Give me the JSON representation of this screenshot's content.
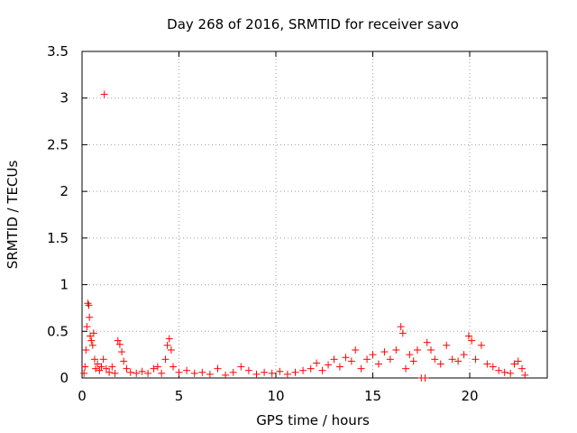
{
  "chart_data": {
    "type": "scatter",
    "title": "Day 268 of 2016, SRMTID for receiver savo",
    "xlabel": "GPS time / hours",
    "ylabel": "SRMTID / TECUs",
    "xlim": [
      0,
      24
    ],
    "ylim": [
      0,
      3.5
    ],
    "x_ticks": [
      0,
      5,
      10,
      15,
      20
    ],
    "x_tick_labels": [
      "0",
      "5",
      "10",
      "15",
      "20"
    ],
    "y_ticks": [
      0,
      0.5,
      1,
      1.5,
      2,
      2.5,
      3,
      3.5
    ],
    "y_tick_labels": [
      "0",
      "0.5",
      "1",
      "1.5",
      "2",
      "2.5",
      "3",
      "3.5"
    ],
    "grid": true,
    "marker": "plus",
    "series": [
      {
        "name": "savo",
        "color": "#ff0000",
        "points": [
          [
            0.1,
            0.05
          ],
          [
            0.15,
            0.12
          ],
          [
            0.2,
            0.3
          ],
          [
            0.25,
            0.55
          ],
          [
            0.3,
            0.8
          ],
          [
            0.35,
            0.78
          ],
          [
            0.38,
            0.65
          ],
          [
            0.42,
            0.45
          ],
          [
            0.48,
            0.4
          ],
          [
            0.55,
            0.35
          ],
          [
            0.6,
            0.48
          ],
          [
            0.65,
            0.2
          ],
          [
            0.7,
            0.1
          ],
          [
            0.8,
            0.15
          ],
          [
            0.9,
            0.08
          ],
          [
            1.0,
            0.12
          ],
          [
            1.1,
            0.2
          ],
          [
            1.15,
            3.04
          ],
          [
            1.25,
            0.1
          ],
          [
            1.4,
            0.06
          ],
          [
            1.55,
            0.12
          ],
          [
            1.7,
            0.05
          ],
          [
            1.85,
            0.4
          ],
          [
            1.95,
            0.36
          ],
          [
            2.05,
            0.28
          ],
          [
            2.15,
            0.18
          ],
          [
            2.3,
            0.1
          ],
          [
            2.5,
            0.06
          ],
          [
            2.8,
            0.05
          ],
          [
            3.1,
            0.07
          ],
          [
            3.4,
            0.05
          ],
          [
            3.7,
            0.1
          ],
          [
            3.9,
            0.12
          ],
          [
            4.1,
            0.05
          ],
          [
            4.3,
            0.2
          ],
          [
            4.4,
            0.35
          ],
          [
            4.5,
            0.42
          ],
          [
            4.6,
            0.3
          ],
          [
            4.7,
            0.12
          ],
          [
            5.0,
            0.06
          ],
          [
            5.4,
            0.08
          ],
          [
            5.8,
            0.05
          ],
          [
            6.2,
            0.06
          ],
          [
            6.6,
            0.04
          ],
          [
            7.0,
            0.1
          ],
          [
            7.4,
            0.03
          ],
          [
            7.8,
            0.06
          ],
          [
            8.2,
            0.12
          ],
          [
            8.6,
            0.08
          ],
          [
            9.0,
            0.04
          ],
          [
            9.4,
            0.06
          ],
          [
            9.8,
            0.05
          ],
          [
            10.2,
            0.07
          ],
          [
            10.6,
            0.04
          ],
          [
            11.0,
            0.06
          ],
          [
            11.4,
            0.08
          ],
          [
            11.8,
            0.1
          ],
          [
            12.1,
            0.16
          ],
          [
            12.4,
            0.08
          ],
          [
            12.7,
            0.14
          ],
          [
            13.0,
            0.2
          ],
          [
            13.3,
            0.12
          ],
          [
            13.6,
            0.22
          ],
          [
            13.9,
            0.18
          ],
          [
            14.1,
            0.3
          ],
          [
            14.4,
            0.1
          ],
          [
            14.7,
            0.2
          ],
          [
            15.0,
            0.25
          ],
          [
            15.3,
            0.15
          ],
          [
            15.6,
            0.28
          ],
          [
            15.9,
            0.2
          ],
          [
            16.2,
            0.3
          ],
          [
            16.45,
            0.55
          ],
          [
            16.55,
            0.48
          ],
          [
            16.7,
            0.1
          ],
          [
            16.9,
            0.25
          ],
          [
            17.1,
            0.18
          ],
          [
            17.3,
            0.3
          ],
          [
            17.5,
            0.0
          ],
          [
            17.7,
            0.0
          ],
          [
            17.8,
            0.38
          ],
          [
            18.0,
            0.3
          ],
          [
            18.2,
            0.2
          ],
          [
            18.5,
            0.15
          ],
          [
            18.8,
            0.35
          ],
          [
            19.1,
            0.2
          ],
          [
            19.4,
            0.18
          ],
          [
            19.7,
            0.25
          ],
          [
            19.95,
            0.45
          ],
          [
            20.1,
            0.4
          ],
          [
            20.3,
            0.2
          ],
          [
            20.6,
            0.35
          ],
          [
            20.9,
            0.15
          ],
          [
            21.2,
            0.12
          ],
          [
            21.5,
            0.08
          ],
          [
            21.8,
            0.06
          ],
          [
            22.1,
            0.05
          ],
          [
            22.3,
            0.15
          ],
          [
            22.5,
            0.18
          ],
          [
            22.7,
            0.1
          ],
          [
            22.85,
            0.03
          ]
        ]
      }
    ]
  }
}
